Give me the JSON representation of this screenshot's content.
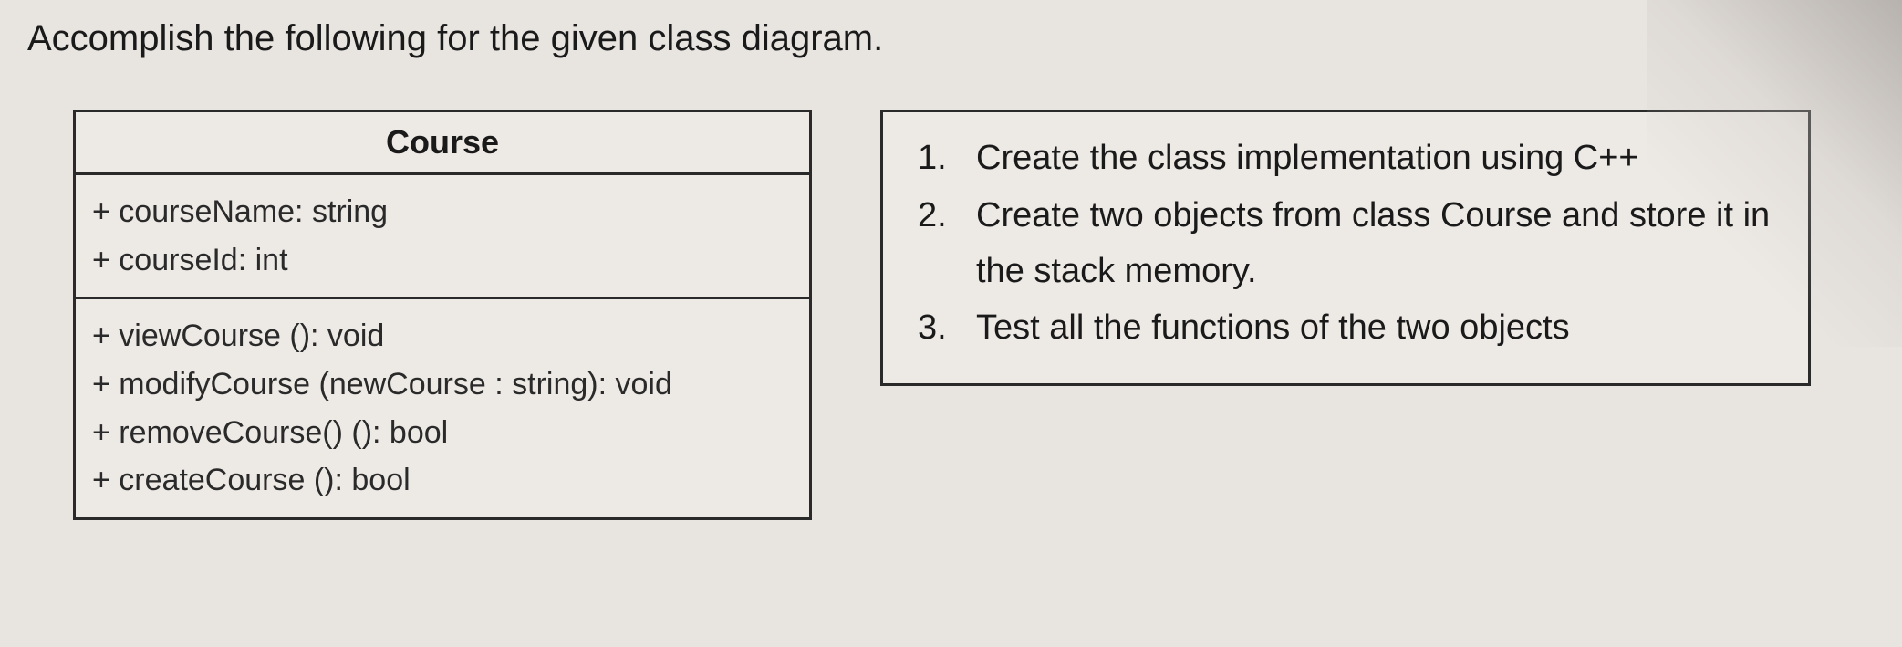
{
  "title": "Accomplish the following for the given class diagram.",
  "uml": {
    "class_name": "Course",
    "attributes": [
      "+ courseName: string",
      "+ courseId: int"
    ],
    "methods": [
      "+ viewCourse (): void",
      "+ modifyCourse (newCourse : string): void",
      "+ removeCourse() (): bool",
      "+ createCourse (): bool"
    ]
  },
  "instructions": [
    "Create the class implementation using C++",
    "Create two objects from class Course and store it in the stack memory.",
    "Test all the functions of the two objects"
  ],
  "style": {
    "background_color": "#e8e4e0",
    "box_background": "#ede9e5",
    "border_color": "#2a2a2a",
    "border_width": 3,
    "text_color": "#1a1a1a",
    "title_fontsize": 40,
    "uml_header_fontsize": 36,
    "uml_line_fontsize": 34,
    "instruction_fontsize": 38
  }
}
